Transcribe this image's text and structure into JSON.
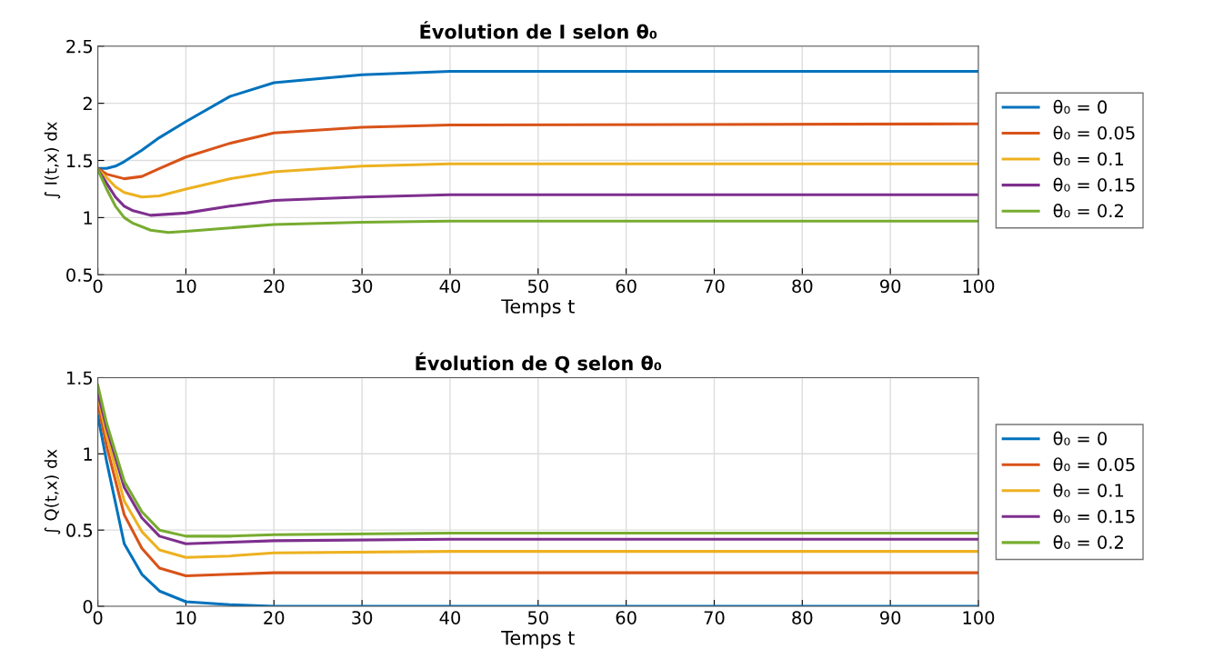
{
  "chart_data": [
    {
      "type": "line",
      "title": "Évolution de I selon θ₀",
      "xlabel": "Temps t",
      "ylabel": "∫ I(t,x) dx",
      "xlim": [
        0,
        100
      ],
      "xticks": [
        0,
        10,
        20,
        30,
        40,
        50,
        60,
        70,
        80,
        90,
        100
      ],
      "ylim": [
        0.5,
        2.5
      ],
      "yticks": [
        0.5,
        1,
        1.5,
        2,
        2.5
      ],
      "grid": true,
      "legend": "right",
      "series": [
        {
          "name": "θ₀ = 0",
          "color": "#0072bd",
          "x": [
            0,
            1,
            2,
            3,
            5,
            7,
            10,
            15,
            20,
            30,
            40,
            100
          ],
          "values": [
            1.43,
            1.43,
            1.45,
            1.49,
            1.59,
            1.7,
            1.84,
            2.06,
            2.18,
            2.25,
            2.28,
            2.28
          ]
        },
        {
          "name": "θ₀ = 0.05",
          "color": "#d95319",
          "x": [
            0,
            1,
            3,
            5,
            7,
            10,
            15,
            20,
            30,
            40,
            100
          ],
          "values": [
            1.43,
            1.38,
            1.34,
            1.36,
            1.43,
            1.53,
            1.65,
            1.74,
            1.79,
            1.81,
            1.82
          ]
        },
        {
          "name": "θ₀ = 0.1",
          "color": "#edb120",
          "x": [
            0,
            1,
            2,
            3,
            5,
            7,
            10,
            15,
            20,
            30,
            40,
            100
          ],
          "values": [
            1.42,
            1.35,
            1.27,
            1.22,
            1.18,
            1.19,
            1.25,
            1.34,
            1.4,
            1.45,
            1.47,
            1.47
          ]
        },
        {
          "name": "θ₀ = 0.15",
          "color": "#7e2f8e",
          "x": [
            0,
            1,
            2,
            3,
            4,
            6,
            10,
            15,
            20,
            30,
            40,
            100
          ],
          "values": [
            1.42,
            1.3,
            1.18,
            1.1,
            1.06,
            1.02,
            1.04,
            1.1,
            1.15,
            1.18,
            1.2,
            1.2
          ]
        },
        {
          "name": "θ₀ = 0.2",
          "color": "#77ac30",
          "x": [
            0,
            1,
            2,
            3,
            4,
            6,
            8,
            10,
            15,
            20,
            30,
            40,
            100
          ],
          "values": [
            1.42,
            1.25,
            1.1,
            1.0,
            0.95,
            0.89,
            0.87,
            0.88,
            0.91,
            0.94,
            0.96,
            0.97,
            0.97
          ]
        }
      ]
    },
    {
      "type": "line",
      "title": "Évolution de Q selon θ₀",
      "xlabel": "Temps t",
      "ylabel": "∫ Q(t,x) dx",
      "xlim": [
        0,
        100
      ],
      "xticks": [
        0,
        10,
        20,
        30,
        40,
        50,
        60,
        70,
        80,
        90,
        100
      ],
      "ylim": [
        0,
        1.5
      ],
      "yticks": [
        0,
        0.5,
        1,
        1.5
      ],
      "grid": true,
      "legend": "right",
      "series": [
        {
          "name": "θ₀ = 0",
          "color": "#0072bd",
          "x": [
            0,
            1,
            3,
            5,
            7,
            10,
            15,
            20,
            100
          ],
          "values": [
            1.25,
            0.95,
            0.41,
            0.21,
            0.1,
            0.03,
            0.01,
            0,
            0
          ]
        },
        {
          "name": "θ₀ = 0.05",
          "color": "#d95319",
          "x": [
            0,
            1,
            3,
            5,
            7,
            10,
            15,
            20,
            40,
            100
          ],
          "values": [
            1.33,
            1.05,
            0.6,
            0.38,
            0.25,
            0.2,
            0.21,
            0.22,
            0.22,
            0.22
          ]
        },
        {
          "name": "θ₀ = 0.1",
          "color": "#edb120",
          "x": [
            0,
            1,
            3,
            5,
            7,
            10,
            15,
            20,
            40,
            100
          ],
          "values": [
            1.38,
            1.12,
            0.69,
            0.49,
            0.37,
            0.32,
            0.33,
            0.35,
            0.36,
            0.36
          ]
        },
        {
          "name": "θ₀ = 0.15",
          "color": "#7e2f8e",
          "x": [
            0,
            1,
            3,
            5,
            7,
            10,
            15,
            20,
            40,
            100
          ],
          "values": [
            1.4,
            1.17,
            0.78,
            0.58,
            0.46,
            0.41,
            0.42,
            0.43,
            0.44,
            0.44
          ]
        },
        {
          "name": "θ₀ = 0.2",
          "color": "#77ac30",
          "x": [
            0,
            1,
            3,
            5,
            7,
            10,
            15,
            20,
            40,
            100
          ],
          "values": [
            1.45,
            1.2,
            0.82,
            0.62,
            0.5,
            0.46,
            0.46,
            0.47,
            0.48,
            0.48
          ]
        }
      ]
    }
  ]
}
